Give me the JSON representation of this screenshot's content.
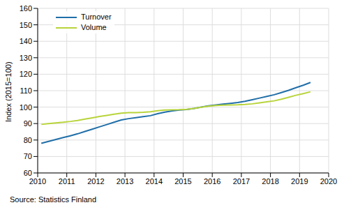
{
  "chart_data": {
    "type": "line",
    "y_label": "Index (2015=100)",
    "note": "Source: Statistics Finland",
    "x": [
      2010.125,
      2010.375,
      2010.625,
      2010.875,
      2011.125,
      2011.375,
      2011.625,
      2011.875,
      2012.125,
      2012.375,
      2012.625,
      2012.875,
      2013.125,
      2013.375,
      2013.625,
      2013.875,
      2014.125,
      2014.375,
      2014.625,
      2014.875,
      2015.125,
      2015.375,
      2015.625,
      2015.875,
      2016.125,
      2016.375,
      2016.625,
      2016.875,
      2017.125,
      2017.375,
      2017.625,
      2017.875,
      2018.125,
      2018.375,
      2018.625,
      2018.875,
      2019.125,
      2019.375
    ],
    "series": [
      {
        "name": "Turnover",
        "color": "#1f6ea8",
        "values": [
          78,
          79.2,
          80.3,
          81.5,
          82.6,
          83.8,
          85.2,
          86.6,
          88,
          89.4,
          90.8,
          92.2,
          93,
          93.6,
          94.2,
          94.8,
          96,
          97,
          97.7,
          98.2,
          98.6,
          99.2,
          100,
          100.8,
          101.3,
          101.8,
          102.3,
          102.8,
          103.5,
          104.5,
          105.5,
          106.5,
          107.5,
          108.8,
          110.2,
          111.8,
          113.3,
          115
        ]
      },
      {
        "name": "Volume",
        "color": "#b8d43a",
        "values": [
          89.5,
          90,
          90.4,
          90.8,
          91.3,
          91.9,
          92.7,
          93.5,
          94.3,
          95,
          95.7,
          96.3,
          96.6,
          96.7,
          96.9,
          97.2,
          97.8,
          98.2,
          98.4,
          98.5,
          98.7,
          99.2,
          99.9,
          100.6,
          101,
          101.2,
          101.3,
          101.4,
          101.6,
          102,
          102.6,
          103.2,
          103.8,
          104.8,
          106,
          107.2,
          108.2,
          109.3
        ]
      }
    ],
    "xlim": [
      2010,
      2020
    ],
    "xticks": [
      2010,
      2011,
      2012,
      2013,
      2014,
      2015,
      2016,
      2017,
      2018,
      2019,
      2020
    ],
    "ylim": [
      60,
      160
    ],
    "yticks": [
      60,
      70,
      80,
      90,
      100,
      110,
      120,
      130,
      140,
      150,
      160
    ],
    "grid": true,
    "legend": "upper left"
  }
}
